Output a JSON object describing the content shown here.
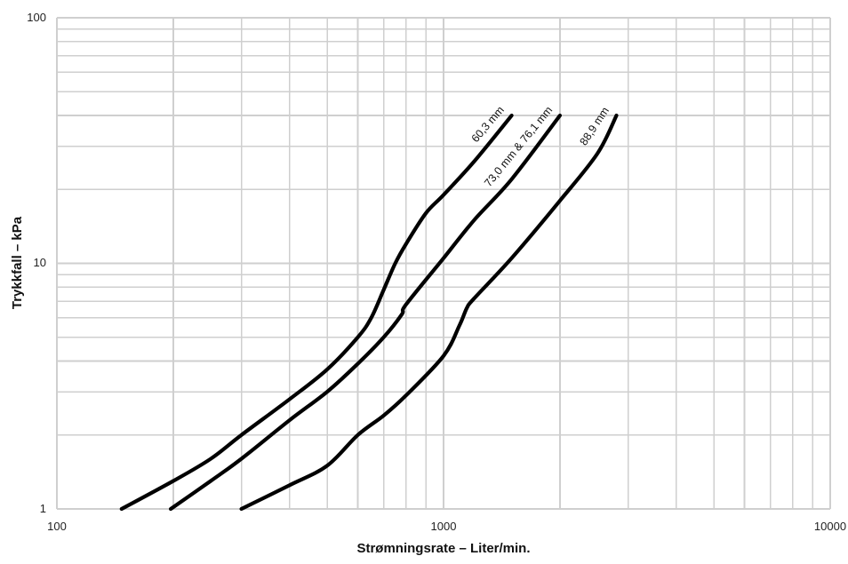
{
  "chart_data": {
    "type": "line",
    "x_scale": "log",
    "y_scale": "log",
    "xlim": [
      100,
      10000
    ],
    "ylim": [
      1,
      100
    ],
    "x_ticks": [
      "100",
      "1000",
      "10000"
    ],
    "y_ticks": [
      "1",
      "10",
      "100"
    ],
    "xlabel": "Strømningsrate – Liter/min.",
    "ylabel": "Trykkfall – kPa",
    "grid": true,
    "series": [
      {
        "name": "60,3 mm",
        "x": [
          147,
          200,
          250,
          300,
          400,
          500,
          600,
          650,
          700,
          750,
          800,
          900,
          1000,
          1200,
          1500
        ],
        "y": [
          1.0,
          1.3,
          1.6,
          2.0,
          2.8,
          3.7,
          5.0,
          6.0,
          7.8,
          10.0,
          12.0,
          16.0,
          19.0,
          26.0,
          40.0
        ]
      },
      {
        "name": "73,0 mm & 76,1 mm",
        "x": [
          197,
          250,
          300,
          400,
          500,
          600,
          700,
          780,
          800,
          1000,
          1200,
          1500,
          2000
        ],
        "y": [
          1.0,
          1.3,
          1.6,
          2.3,
          3.0,
          3.9,
          5.0,
          6.2,
          6.8,
          10.5,
          15.0,
          22.0,
          40.0
        ]
      },
      {
        "name": "88,9 mm",
        "x": [
          300,
          400,
          500,
          600,
          700,
          800,
          1000,
          1100,
          1150,
          1200,
          1500,
          2000,
          2500,
          2800
        ],
        "y": [
          1.0,
          1.25,
          1.5,
          2.0,
          2.4,
          2.9,
          4.2,
          5.6,
          6.6,
          7.2,
          10.5,
          18.0,
          28.0,
          40.0
        ]
      }
    ]
  },
  "colors": {
    "grid": "#cfcfcf",
    "line": "#000000",
    "text": "#111111"
  }
}
